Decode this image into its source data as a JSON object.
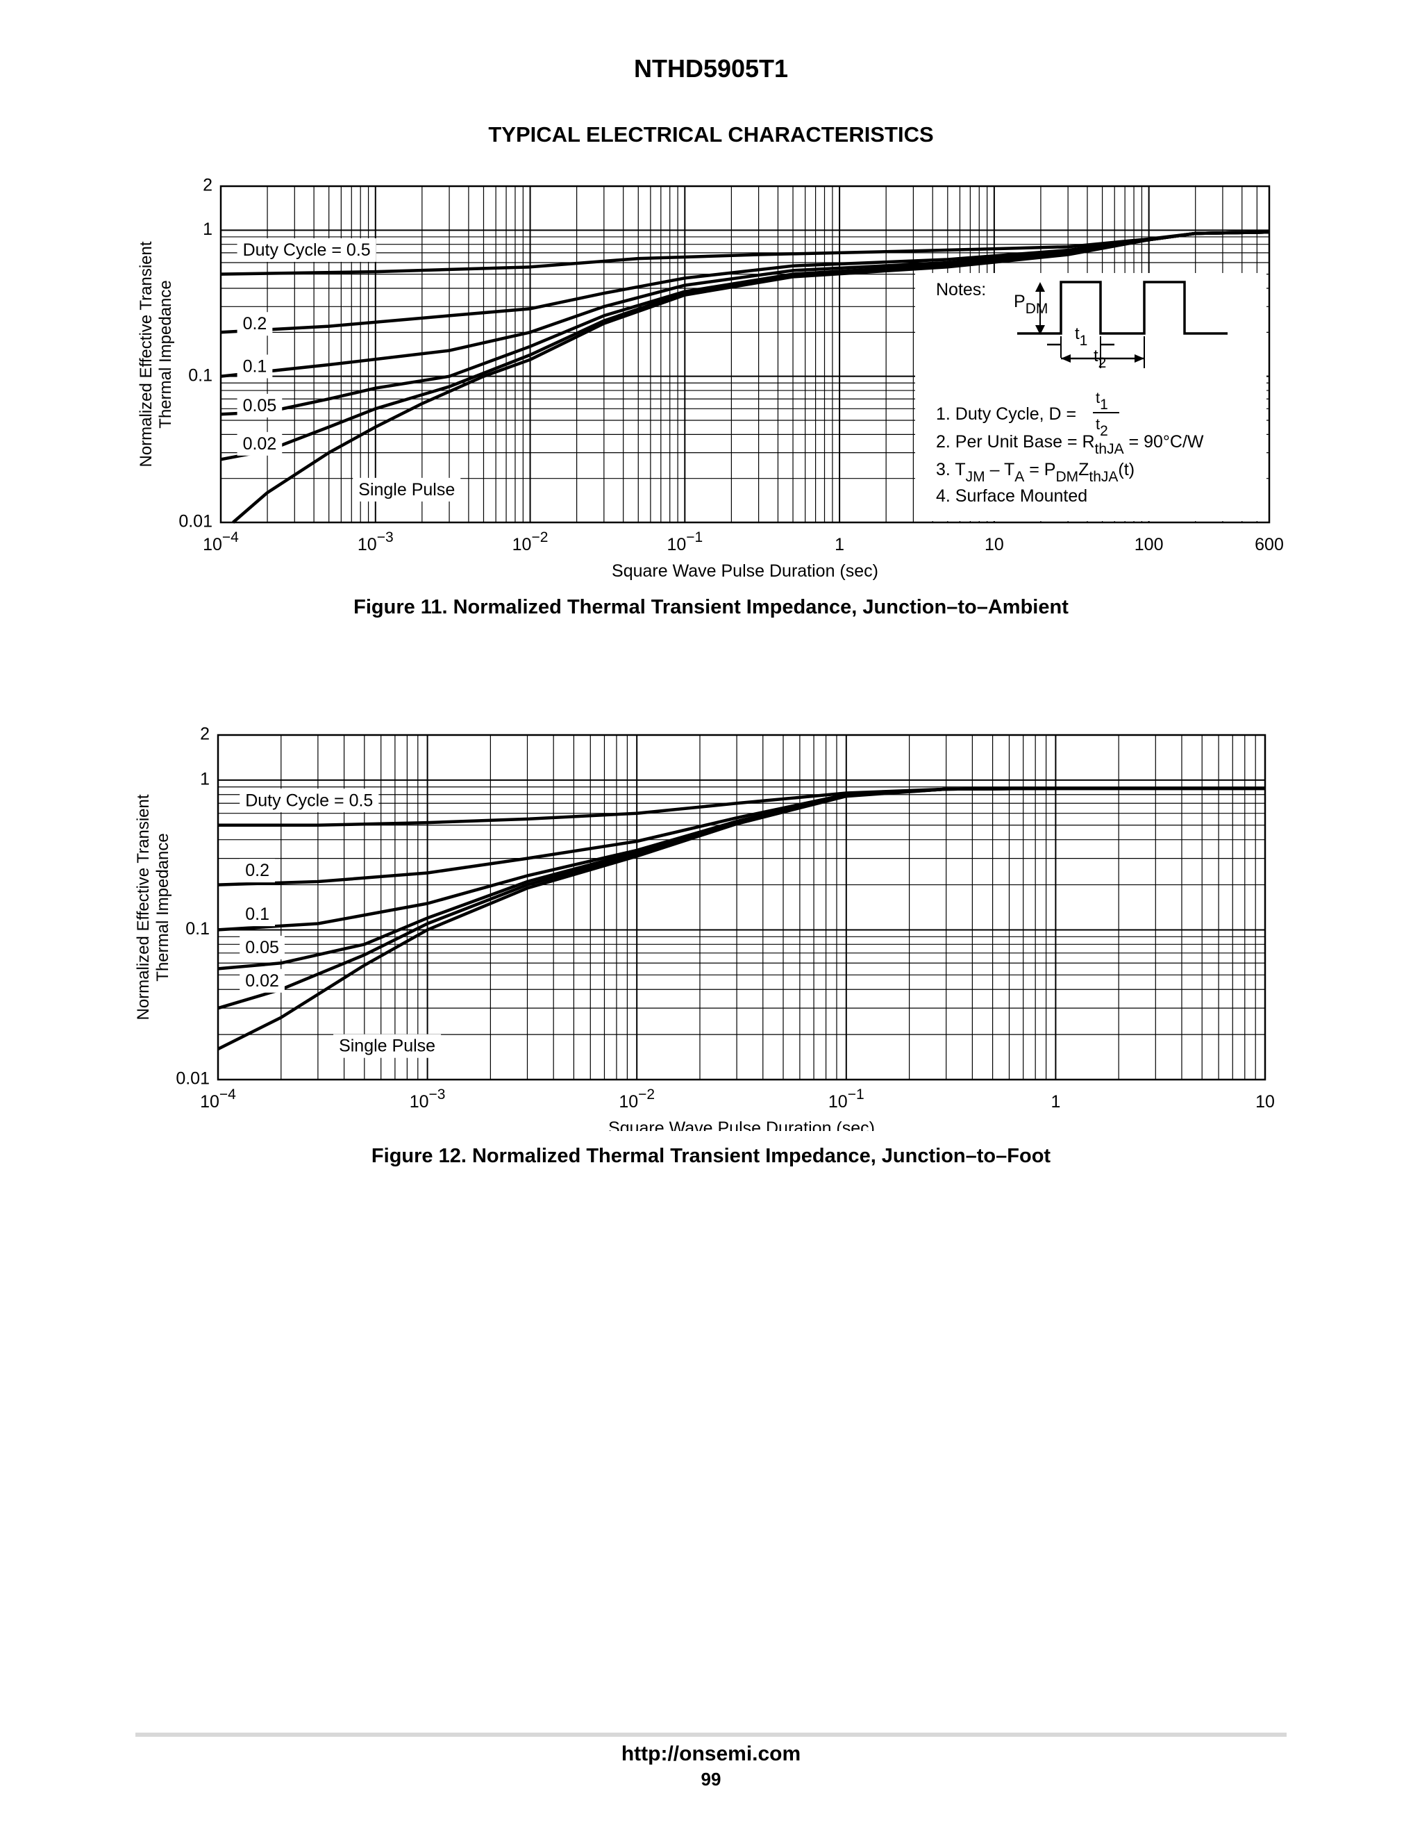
{
  "header": {
    "title": "NTHD5905T1",
    "section": "TYPICAL ELECTRICAL CHARACTERISTICS"
  },
  "figures": [
    {
      "caption": "Figure 11. Normalized Thermal Transient Impedance, Junction–to–Ambient",
      "notes": {
        "heading": "Notes:",
        "pdm": [
          "P",
          "DM"
        ],
        "t1": [
          "t",
          "1"
        ],
        "t2": [
          "t",
          "2"
        ],
        "line1": "1. Duty Cycle, D =",
        "line2": [
          "2. Per Unit Base = R",
          "thJA",
          " = 90°C/W"
        ],
        "line3": [
          "3. T",
          "JM",
          " – T",
          "A",
          " = P",
          "DM",
          "Z",
          "thJA",
          "(t)"
        ],
        "line4": "4. Surface Mounted"
      }
    },
    {
      "caption": "Figure 12. Normalized Thermal Transient Impedance, Junction–to–Foot"
    }
  ],
  "footer": {
    "url": "http://onsemi.com",
    "page": "99"
  },
  "chart_data": [
    {
      "type": "line",
      "title": "",
      "xlabel": "Square Wave Pulse Duration (sec)",
      "ylabel": [
        "Normalized Effective Transient",
        "Thermal Impedance"
      ],
      "xscale": "log",
      "yscale": "log",
      "xlim": [
        0.0001,
        600
      ],
      "ylim": [
        0.01,
        2
      ],
      "grid": true,
      "x_ticks": [
        {
          "v": 0.0001,
          "base": "10",
          "exp": "−4"
        },
        {
          "v": 0.001,
          "base": "10",
          "exp": "−3"
        },
        {
          "v": 0.01,
          "base": "10",
          "exp": "−2"
        },
        {
          "v": 0.1,
          "base": "10",
          "exp": "−1"
        },
        {
          "v": 1,
          "base": "1",
          "exp": ""
        },
        {
          "v": 10,
          "base": "10",
          "exp": ""
        },
        {
          "v": 100,
          "base": "100",
          "exp": ""
        },
        {
          "v": 600,
          "base": "600",
          "exp": ""
        }
      ],
      "y_ticks": [
        {
          "v": 0.01,
          "label": "0.01"
        },
        {
          "v": 0.1,
          "label": "0.1"
        },
        {
          "v": 1,
          "label": "1"
        },
        {
          "v": 2,
          "label": "2"
        }
      ],
      "series": [
        {
          "name": "Duty Cycle = 0.5",
          "label_at": [
            0.000125,
            0.72
          ],
          "points": [
            [
              0.0001,
              0.5
            ],
            [
              0.001,
              0.52
            ],
            [
              0.01,
              0.56
            ],
            [
              0.05,
              0.64
            ],
            [
              0.3,
              0.68
            ],
            [
              3,
              0.72
            ],
            [
              30,
              0.77
            ],
            [
              100,
              0.87
            ],
            [
              200,
              0.95
            ],
            [
              600,
              0.97
            ]
          ]
        },
        {
          "name": "0.2",
          "label_at": [
            0.000125,
            0.225
          ],
          "points": [
            [
              0.0001,
              0.2
            ],
            [
              0.0005,
              0.22
            ],
            [
              0.003,
              0.26
            ],
            [
              0.01,
              0.29
            ],
            [
              0.03,
              0.37
            ],
            [
              0.1,
              0.47
            ],
            [
              0.5,
              0.57
            ],
            [
              5,
              0.63
            ],
            [
              30,
              0.73
            ],
            [
              100,
              0.86
            ],
            [
              200,
              0.95
            ],
            [
              600,
              0.97
            ]
          ]
        },
        {
          "name": "0.1",
          "label_at": [
            0.000125,
            0.115
          ],
          "points": [
            [
              0.0001,
              0.1
            ],
            [
              0.0005,
              0.12
            ],
            [
              0.003,
              0.15
            ],
            [
              0.01,
              0.2
            ],
            [
              0.03,
              0.3
            ],
            [
              0.1,
              0.42
            ],
            [
              0.5,
              0.53
            ],
            [
              5,
              0.6
            ],
            [
              30,
              0.71
            ],
            [
              100,
              0.86
            ],
            [
              200,
              0.95
            ],
            [
              600,
              0.97
            ]
          ]
        },
        {
          "name": "0.05",
          "label_at": [
            0.000125,
            0.062
          ],
          "points": [
            [
              0.0001,
              0.055
            ],
            [
              0.0002,
              0.057
            ],
            [
              0.0005,
              0.07
            ],
            [
              0.001,
              0.083
            ],
            [
              0.003,
              0.1
            ],
            [
              0.01,
              0.16
            ],
            [
              0.03,
              0.26
            ],
            [
              0.1,
              0.38
            ],
            [
              0.5,
              0.5
            ],
            [
              5,
              0.58
            ],
            [
              30,
              0.7
            ],
            [
              100,
              0.86
            ],
            [
              200,
              0.95
            ],
            [
              600,
              0.97
            ]
          ]
        },
        {
          "name": "0.02",
          "label_at": [
            0.000125,
            0.034
          ],
          "points": [
            [
              0.0001,
              0.027
            ],
            [
              0.0002,
              0.031
            ],
            [
              0.0005,
              0.045
            ],
            [
              0.001,
              0.06
            ],
            [
              0.003,
              0.085
            ],
            [
              0.01,
              0.14
            ],
            [
              0.03,
              0.24
            ],
            [
              0.1,
              0.37
            ],
            [
              0.5,
              0.49
            ],
            [
              5,
              0.57
            ],
            [
              30,
              0.69
            ],
            [
              100,
              0.86
            ],
            [
              200,
              0.95
            ],
            [
              600,
              0.97
            ]
          ]
        },
        {
          "name": "Single Pulse",
          "label_at": [
            0.0007,
            0.0165
          ],
          "points": [
            [
              0.00012,
              0.01
            ],
            [
              0.0002,
              0.016
            ],
            [
              0.0005,
              0.03
            ],
            [
              0.001,
              0.045
            ],
            [
              0.002,
              0.065
            ],
            [
              0.005,
              0.1
            ],
            [
              0.01,
              0.13
            ],
            [
              0.03,
              0.23
            ],
            [
              0.1,
              0.36
            ],
            [
              0.5,
              0.48
            ],
            [
              5,
              0.56
            ],
            [
              30,
              0.68
            ],
            [
              100,
              0.86
            ],
            [
              200,
              0.95
            ],
            [
              600,
              0.97
            ]
          ]
        }
      ]
    },
    {
      "type": "line",
      "title": "",
      "xlabel": "Square Wave Pulse Duration (sec)",
      "ylabel": [
        "Normalized Effective Transient",
        "Thermal Impedance"
      ],
      "xscale": "log",
      "yscale": "log",
      "xlim": [
        0.0001,
        10
      ],
      "ylim": [
        0.01,
        2
      ],
      "grid": true,
      "x_ticks": [
        {
          "v": 0.0001,
          "base": "10",
          "exp": "−4"
        },
        {
          "v": 0.001,
          "base": "10",
          "exp": "−3"
        },
        {
          "v": 0.01,
          "base": "10",
          "exp": "−2"
        },
        {
          "v": 0.1,
          "base": "10",
          "exp": "−1"
        },
        {
          "v": 1,
          "base": "1",
          "exp": ""
        },
        {
          "v": 10,
          "base": "10",
          "exp": ""
        }
      ],
      "y_ticks": [
        {
          "v": 0.01,
          "label": "0.01"
        },
        {
          "v": 0.1,
          "label": "0.1"
        },
        {
          "v": 1,
          "label": "1"
        },
        {
          "v": 2,
          "label": "2"
        }
      ],
      "series": [
        {
          "name": "Duty Cycle = 0.5",
          "label_at": [
            0.000125,
            0.72
          ],
          "points": [
            [
              0.0001,
              0.5
            ],
            [
              0.0003,
              0.5
            ],
            [
              0.001,
              0.52
            ],
            [
              0.003,
              0.55
            ],
            [
              0.01,
              0.6
            ],
            [
              0.03,
              0.7
            ],
            [
              0.1,
              0.82
            ],
            [
              0.3,
              0.87
            ],
            [
              1,
              0.88
            ],
            [
              10,
              0.88
            ]
          ]
        },
        {
          "name": "0.2",
          "label_at": [
            0.000125,
            0.245
          ],
          "points": [
            [
              0.0001,
              0.2
            ],
            [
              0.0003,
              0.21
            ],
            [
              0.001,
              0.24
            ],
            [
              0.003,
              0.3
            ],
            [
              0.01,
              0.39
            ],
            [
              0.03,
              0.56
            ],
            [
              0.1,
              0.8
            ],
            [
              0.3,
              0.87
            ],
            [
              1,
              0.88
            ],
            [
              10,
              0.88
            ]
          ]
        },
        {
          "name": "0.1",
          "label_at": [
            0.000125,
            0.125
          ],
          "points": [
            [
              0.0001,
              0.1
            ],
            [
              0.0003,
              0.11
            ],
            [
              0.001,
              0.15
            ],
            [
              0.003,
              0.23
            ],
            [
              0.01,
              0.34
            ],
            [
              0.03,
              0.53
            ],
            [
              0.1,
              0.79
            ],
            [
              0.3,
              0.87
            ],
            [
              1,
              0.88
            ],
            [
              10,
              0.88
            ]
          ]
        },
        {
          "name": "0.05",
          "label_at": [
            0.000125,
            0.075
          ],
          "points": [
            [
              0.0001,
              0.055
            ],
            [
              0.0002,
              0.06
            ],
            [
              0.0005,
              0.08
            ],
            [
              0.001,
              0.12
            ],
            [
              0.003,
              0.21
            ],
            [
              0.01,
              0.33
            ],
            [
              0.03,
              0.53
            ],
            [
              0.1,
              0.79
            ],
            [
              0.3,
              0.87
            ],
            [
              1,
              0.88
            ],
            [
              10,
              0.88
            ]
          ]
        },
        {
          "name": "0.02",
          "label_at": [
            0.000125,
            0.045
          ],
          "points": [
            [
              0.0001,
              0.03
            ],
            [
              0.0002,
              0.04
            ],
            [
              0.0005,
              0.068
            ],
            [
              0.001,
              0.11
            ],
            [
              0.003,
              0.2
            ],
            [
              0.01,
              0.32
            ],
            [
              0.03,
              0.52
            ],
            [
              0.1,
              0.79
            ],
            [
              0.3,
              0.87
            ],
            [
              1,
              0.88
            ],
            [
              10,
              0.88
            ]
          ]
        },
        {
          "name": "Single Pulse",
          "label_at": [
            0.00035,
            0.0165
          ],
          "points": [
            [
              0.0001,
              0.016
            ],
            [
              0.0002,
              0.026
            ],
            [
              0.0005,
              0.058
            ],
            [
              0.001,
              0.1
            ],
            [
              0.003,
              0.19
            ],
            [
              0.01,
              0.31
            ],
            [
              0.03,
              0.51
            ],
            [
              0.1,
              0.78
            ],
            [
              0.3,
              0.87
            ],
            [
              1,
              0.88
            ],
            [
              10,
              0.88
            ]
          ]
        }
      ]
    }
  ]
}
